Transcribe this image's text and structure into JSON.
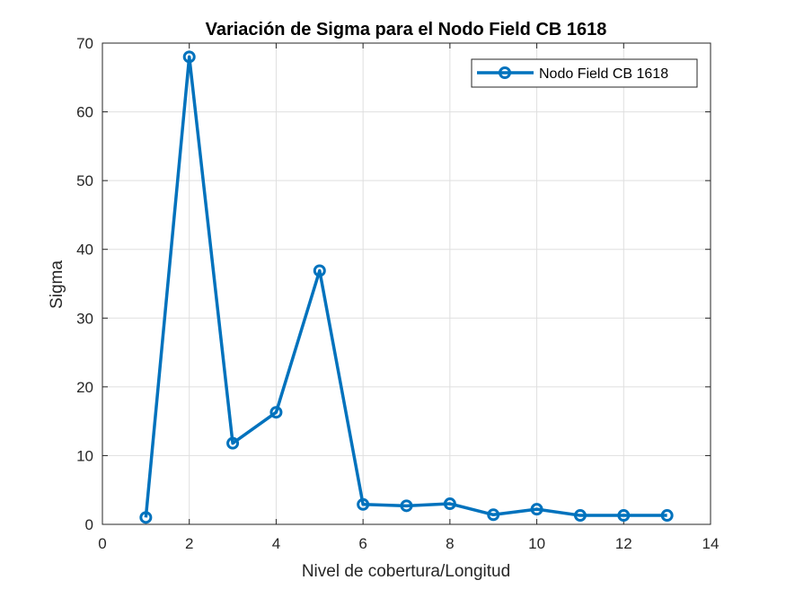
{
  "chart_data": {
    "type": "line",
    "title": "Variación de Sigma para el Nodo Field CB 1618",
    "xlabel": "Nivel de cobertura/Longitud",
    "ylabel": "Sigma",
    "xlim": [
      0,
      14
    ],
    "ylim": [
      0,
      70
    ],
    "xticks": [
      0,
      2,
      4,
      6,
      8,
      10,
      12,
      14
    ],
    "yticks": [
      0,
      10,
      20,
      30,
      40,
      50,
      60,
      70
    ],
    "grid": true,
    "legend_position": "top-right",
    "series": [
      {
        "name": "Nodo Field CB 1618",
        "color": "#0072BD",
        "marker": "circle",
        "x": [
          1,
          2,
          3,
          4,
          5,
          6,
          7,
          8,
          9,
          10,
          11,
          12,
          13
        ],
        "y": [
          1.0,
          68.0,
          11.8,
          16.3,
          36.9,
          2.9,
          2.7,
          3.0,
          1.4,
          2.2,
          1.3,
          1.3,
          1.3
        ]
      }
    ]
  }
}
